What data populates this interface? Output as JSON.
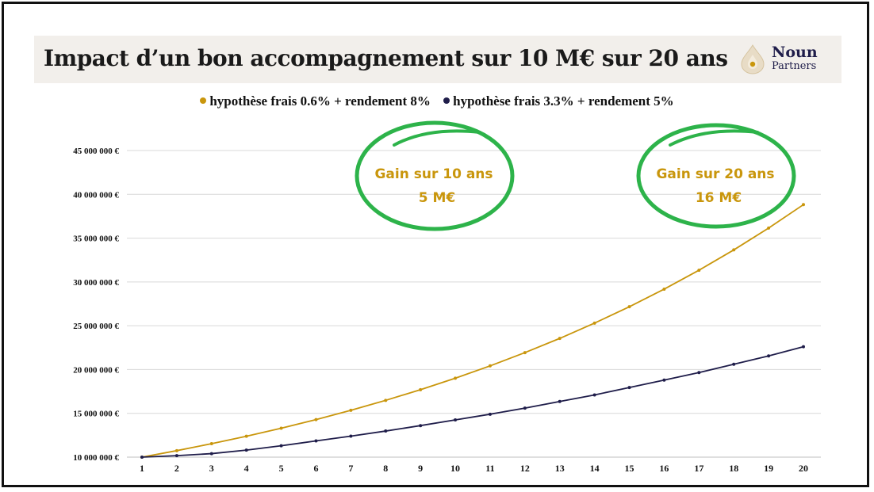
{
  "title": "Impact d’un bon accompagnement sur 10 M€ sur 20 ans",
  "logo": {
    "name": "Noun",
    "sub": "Partners"
  },
  "colors": {
    "gold": "#c9960c",
    "navy": "#1f1d4a",
    "green": "#2db34a",
    "grid": "#d9d9d9",
    "title_bg": "#f2efeb"
  },
  "chart_data": {
    "type": "line",
    "x": [
      1,
      2,
      3,
      4,
      5,
      6,
      7,
      8,
      9,
      10,
      11,
      12,
      13,
      14,
      15,
      16,
      17,
      18,
      19,
      20
    ],
    "y_ticks": [
      "10 000 000 €",
      "15 000 000 €",
      "20 000 000 €",
      "25 000 000 €",
      "30 000 000 €",
      "35 000 000 €",
      "40 000 000 €",
      "45 000 000 €"
    ],
    "ylim": [
      10000000,
      45000000
    ],
    "grid": true,
    "legend_position": "top",
    "series": [
      {
        "name": "hypothèse frais 0.6% + rendement 8%",
        "color": "#c9960c",
        "values": [
          10000000,
          10740000,
          11534760,
          12388332,
          13305069,
          14289644,
          15347078,
          16482762,
          17702486,
          19012470,
          20419392,
          21930427,
          23553278,
          25296201,
          27168080,
          29178438,
          31337562,
          33656541,
          36147125,
          38822012
        ]
      },
      {
        "name": "hypothèse frais 3.3% + rendement 5%",
        "color": "#1f1d4a",
        "values": [
          10000000,
          10170000,
          10400000,
          10800000,
          11300000,
          11850000,
          12400000,
          12980000,
          13600000,
          14250000,
          14900000,
          15600000,
          16350000,
          17100000,
          17950000,
          18800000,
          19650000,
          20600000,
          21550000,
          22600000
        ]
      }
    ],
    "annotations": [
      {
        "line1": "Gain  sur 10 ans",
        "line2": "5 M€"
      },
      {
        "line1": "Gain  sur 20 ans",
        "line2": "16 M€"
      }
    ]
  }
}
